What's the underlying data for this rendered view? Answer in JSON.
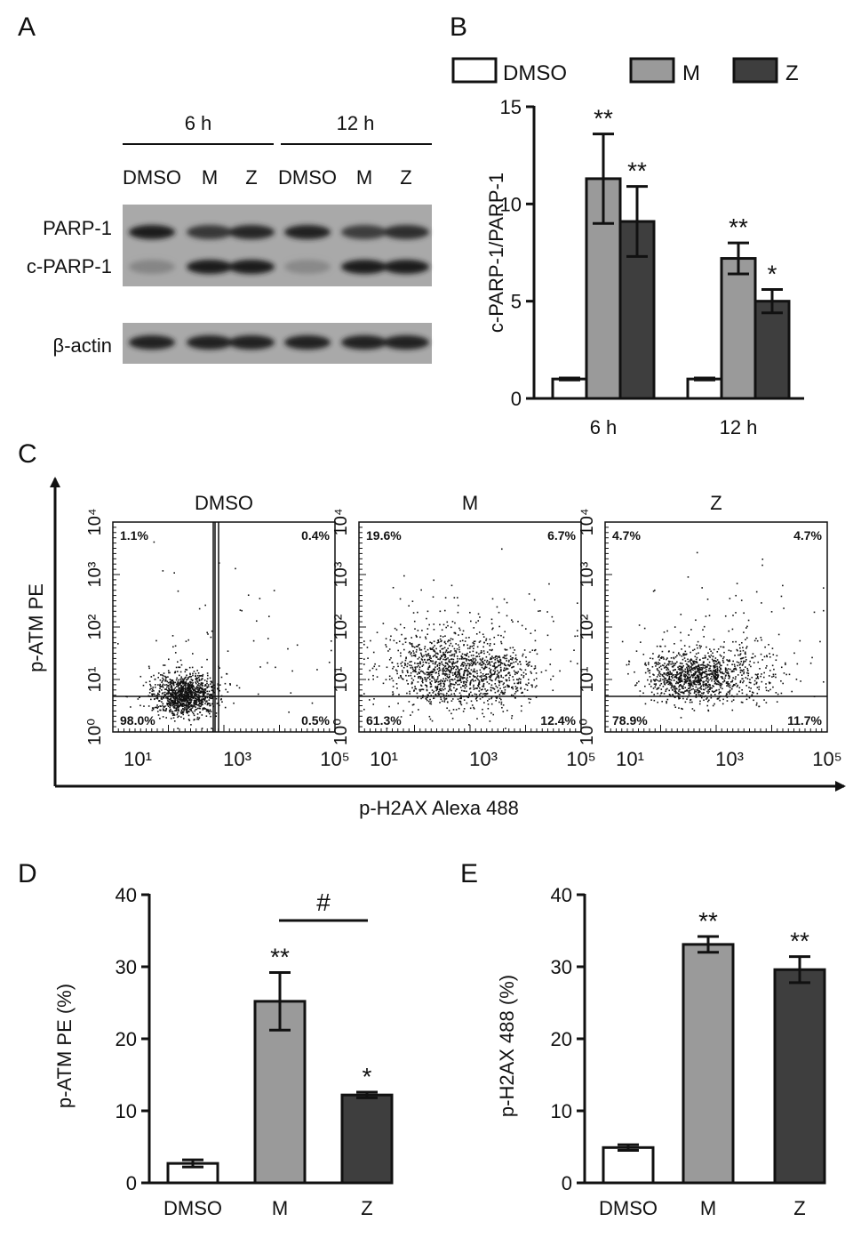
{
  "panels": {
    "A": {
      "letter": "A",
      "groups": [
        "6 h",
        "12 h"
      ],
      "lanes": [
        "DMSO",
        "M",
        "Z",
        "DMSO",
        "M",
        "Z"
      ],
      "bands": [
        {
          "label": "PARP-1",
          "intensity": [
            0.92,
            0.72,
            0.85,
            0.88,
            0.68,
            0.8
          ]
        },
        {
          "label": "c-PARP-1",
          "intensity": [
            0.12,
            0.95,
            0.95,
            0.1,
            0.92,
            0.92
          ]
        },
        {
          "label": "β-actin",
          "intensity": [
            0.9,
            0.9,
            0.9,
            0.9,
            0.9,
            0.9
          ]
        }
      ]
    },
    "B": {
      "letter": "B"
    },
    "C": {
      "letter": "C",
      "ylabel": "p-ATM PE",
      "xlabel": "p-H2AX Alexa 488",
      "y_tick_labels": [
        "10⁰",
        "10¹",
        "10²",
        "10³",
        "10⁴"
      ],
      "x_tick_labels": [
        "10¹",
        "10³",
        "10⁵"
      ],
      "plots": [
        {
          "title": "DMSO",
          "q_ul": "1.1%",
          "q_ur": "0.4%",
          "q_ll": "98.0%",
          "q_lr": "0.5%"
        },
        {
          "title": "M",
          "q_ul": "19.6%",
          "q_ur": "6.7%",
          "q_ll": "61.3%",
          "q_lr": "12.4%"
        },
        {
          "title": "Z",
          "q_ul": "4.7%",
          "q_ur": "4.7%",
          "q_ll": "78.9%",
          "q_lr": "11.7%"
        }
      ]
    },
    "D": {
      "letter": "D",
      "hash_label": "#"
    },
    "E": {
      "letter": "E"
    }
  },
  "chart_data": [
    {
      "id": "B",
      "type": "bar",
      "categories": [
        "6 h",
        "12 h"
      ],
      "series": [
        {
          "name": "DMSO",
          "values": [
            1.0,
            1.0
          ],
          "errors": [
            0.05,
            0.05
          ],
          "sig": [
            "",
            ""
          ],
          "color": "#ffffff"
        },
        {
          "name": "M",
          "values": [
            11.3,
            7.2
          ],
          "errors": [
            2.3,
            0.8
          ],
          "sig": [
            "**",
            "**"
          ],
          "color": "#9a9a9a"
        },
        {
          "name": "Z",
          "values": [
            9.1,
            5.0
          ],
          "errors": [
            1.8,
            0.6
          ],
          "sig": [
            "**",
            "*"
          ],
          "color": "#3e3e3e"
        }
      ],
      "ylabel": "c-PARP-1/PARP-1",
      "ylim": [
        0,
        15
      ],
      "yticks": [
        0,
        5,
        10,
        15
      ],
      "legend": "top"
    },
    {
      "id": "D",
      "type": "bar",
      "categories": [
        "DMSO",
        "M",
        "Z"
      ],
      "values": [
        2.7,
        25.2,
        12.2
      ],
      "errors": [
        0.5,
        4.0,
        0.4
      ],
      "sig": [
        "",
        "**",
        "*"
      ],
      "colors": [
        "#ffffff",
        "#9a9a9a",
        "#3e3e3e"
      ],
      "ylabel": "p-ATM PE (%)",
      "ylim": [
        0,
        40
      ],
      "yticks": [
        0,
        10,
        20,
        30,
        40
      ]
    },
    {
      "id": "E",
      "type": "bar",
      "categories": [
        "DMSO",
        "M",
        "Z"
      ],
      "values": [
        4.9,
        33.1,
        29.6
      ],
      "errors": [
        0.4,
        1.1,
        1.8
      ],
      "sig": [
        "",
        "**",
        "**"
      ],
      "colors": [
        "#ffffff",
        "#9a9a9a",
        "#3e3e3e"
      ],
      "ylabel": "p-H2AX 488 (%)",
      "ylim": [
        0,
        40
      ],
      "yticks": [
        0,
        10,
        20,
        30,
        40
      ]
    }
  ]
}
